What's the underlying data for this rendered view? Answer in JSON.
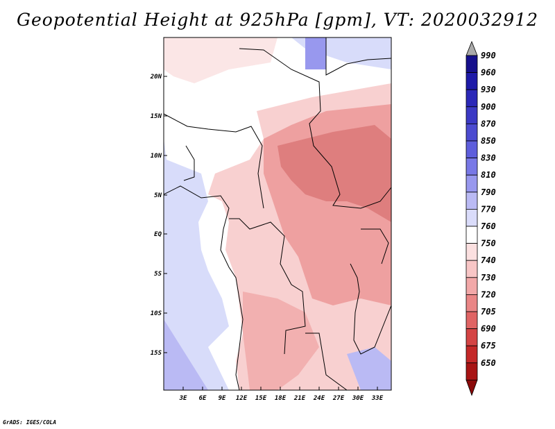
{
  "title": "Geopotential Height at 925hPa [gpm], VT: 2020032912",
  "footer": "GrADS: IGES/COLA",
  "colors": {
    "deep_blue": "#1a0fa0",
    "light_blue": "#d8dcfa",
    "white": "#ffffff",
    "light_red": "#f8d2d2",
    "mid_red": "#ee9c9c",
    "deep_red": "#a81c1c"
  },
  "map": {
    "y_tick_labels": [
      "20N",
      "15N",
      "10N",
      "5N",
      "EQ",
      "5S",
      "10S",
      "15S"
    ],
    "x_tick_labels": [
      "3E",
      "6E",
      "9E",
      "12E",
      "15E",
      "18E",
      "21E",
      "24E",
      "27E",
      "30E",
      "33E"
    ]
  },
  "colorbar": {
    "levels": [
      "990",
      "960",
      "930",
      "900",
      "870",
      "850",
      "830",
      "810",
      "790",
      "770",
      "760",
      "750",
      "740",
      "730",
      "720",
      "705",
      "690",
      "675",
      "650"
    ],
    "colors": [
      "#16108c",
      "#1e1aa8",
      "#2b28b8",
      "#3b39c4",
      "#4c4bd0",
      "#5e5edc",
      "#7878e6",
      "#9898ee",
      "#babaf4",
      "#dadcfa",
      "#ffffff",
      "#fbe0e0",
      "#f8c6c6",
      "#f2a8a8",
      "#ea8686",
      "#e06464",
      "#d44444",
      "#c42828",
      "#a81414",
      "#8a0a0a"
    ]
  }
}
